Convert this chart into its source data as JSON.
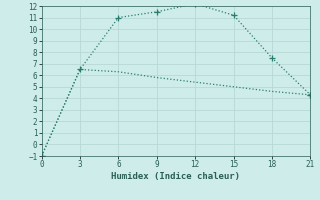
{
  "line1_x": [
    0,
    3,
    6,
    9,
    12,
    15,
    18,
    21
  ],
  "line1_y": [
    -1,
    6.5,
    11,
    11.5,
    12.2,
    11.2,
    7.5,
    4.3
  ],
  "line2_x": [
    0,
    3,
    6,
    9,
    12,
    15,
    18,
    21
  ],
  "line2_y": [
    -1,
    6.5,
    6.3,
    5.8,
    5.4,
    5.0,
    4.6,
    4.3
  ],
  "line_color": "#2a7d6e",
  "bg_color": "#ceecea",
  "grid_color": "#b8d8d5",
  "xlabel": "Humidex (Indice chaleur)",
  "xlim": [
    0,
    21
  ],
  "ylim": [
    -1,
    12
  ],
  "xticks": [
    0,
    3,
    6,
    9,
    12,
    15,
    18,
    21
  ],
  "yticks": [
    -1,
    0,
    1,
    2,
    3,
    4,
    5,
    6,
    7,
    8,
    9,
    10,
    11,
    12
  ],
  "font_color": "#2a5f55",
  "markersize": 4,
  "linewidth": 0.9
}
